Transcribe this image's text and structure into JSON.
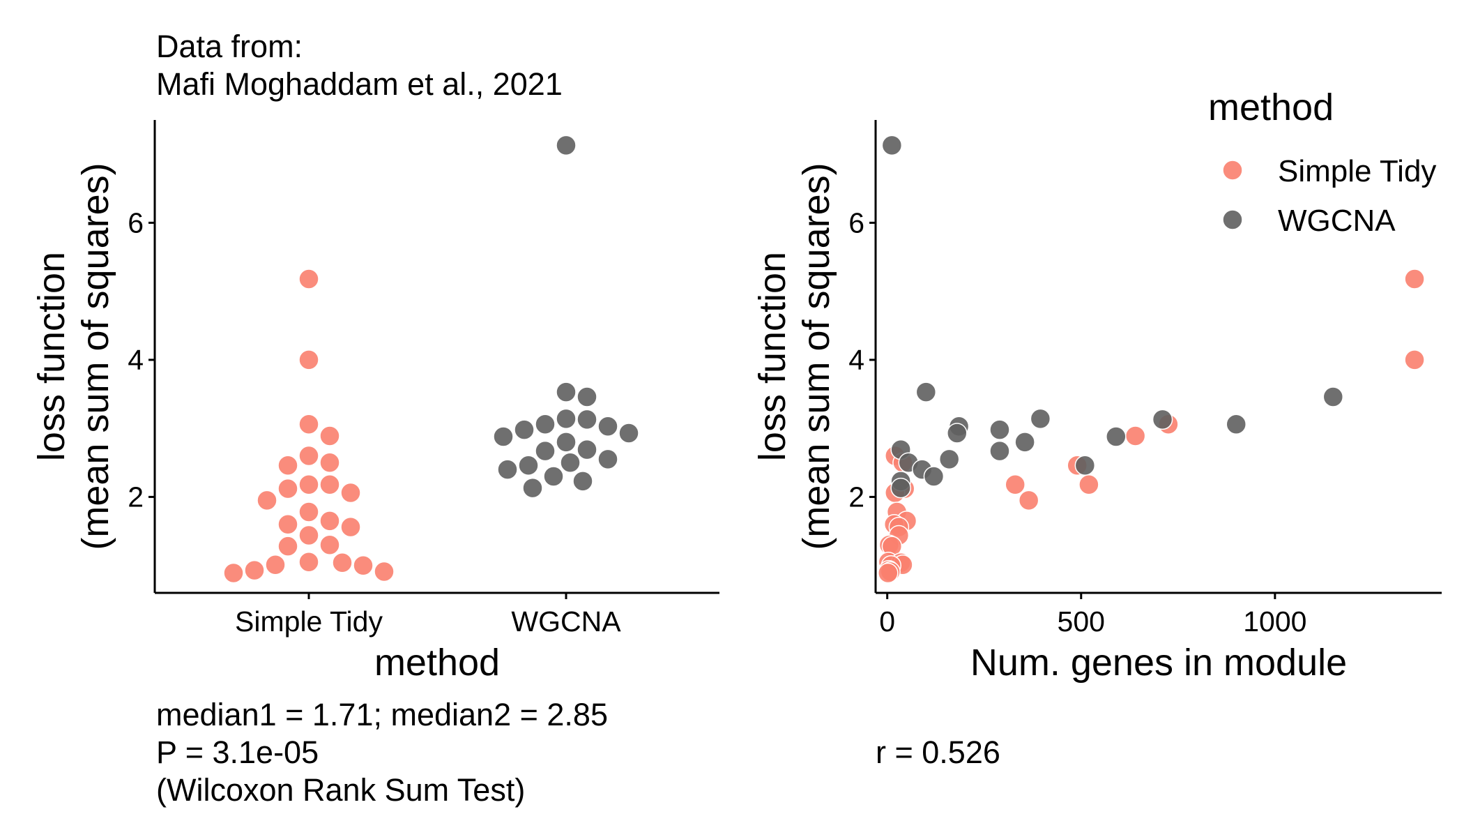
{
  "chart_data": [
    {
      "type": "scatter",
      "subtype": "beeswarm",
      "title_lines": [
        "Data from:",
        "Mafi Moghaddam et al., 2021"
      ],
      "xlabel": "method",
      "ylabel_lines": [
        "loss function",
        "(mean sum of squares)"
      ],
      "categories": [
        "Simple Tidy",
        "WGCNA"
      ],
      "ylim": [
        0.6,
        7.5
      ],
      "yticks": [
        2,
        4,
        6
      ],
      "grid": false,
      "series": [
        {
          "name": "Simple Tidy",
          "color": "#FA7F6E",
          "values": [
            5.18,
            4.0,
            3.06,
            2.89,
            2.6,
            2.5,
            2.46,
            2.18,
            2.18,
            2.12,
            2.06,
            1.95,
            1.78,
            1.65,
            1.6,
            1.56,
            1.44,
            1.3,
            1.28,
            1.05,
            1.04,
            1.01,
            1.0,
            0.93,
            0.91,
            0.89
          ]
        },
        {
          "name": "WGCNA",
          "color": "#5F5F5F",
          "values": [
            7.13,
            3.53,
            3.46,
            3.14,
            3.13,
            3.06,
            3.03,
            2.98,
            2.93,
            2.88,
            2.8,
            2.69,
            2.67,
            2.55,
            2.5,
            2.46,
            2.4,
            2.3,
            2.23,
            2.13
          ]
        }
      ],
      "annotation_lines": [
        "median1 = 1.71; median2 = 2.85",
        "P = 3.1e-05",
        "(Wilcoxon Rank Sum Test)"
      ]
    },
    {
      "type": "scatter",
      "xlabel": "Num. genes in module",
      "ylabel_lines": [
        "loss function",
        "(mean sum of squares)"
      ],
      "xlim": [
        -30,
        1430
      ],
      "ylim": [
        0.6,
        7.5
      ],
      "xticks": [
        0,
        500,
        1000
      ],
      "yticks": [
        2,
        4,
        6
      ],
      "grid": false,
      "legend": {
        "title": "method",
        "position": "top-right"
      },
      "series": [
        {
          "name": "Simple Tidy",
          "color": "#FA7F6E",
          "points": [
            [
              1360,
              5.18
            ],
            [
              1360,
              4.0
            ],
            [
              725,
              3.06
            ],
            [
              640,
              2.89
            ],
            [
              20,
              2.6
            ],
            [
              40,
              2.5
            ],
            [
              490,
              2.46
            ],
            [
              330,
              2.18
            ],
            [
              520,
              2.18
            ],
            [
              45,
              2.12
            ],
            [
              20,
              2.06
            ],
            [
              365,
              1.95
            ],
            [
              25,
              1.78
            ],
            [
              50,
              1.65
            ],
            [
              18,
              1.6
            ],
            [
              30,
              1.56
            ],
            [
              30,
              1.44
            ],
            [
              5,
              1.3
            ],
            [
              12,
              1.28
            ],
            [
              3,
              1.05
            ],
            [
              35,
              1.04
            ],
            [
              40,
              1.01
            ],
            [
              10,
              1.0
            ],
            [
              4,
              0.93
            ],
            [
              8,
              0.91
            ],
            [
              2,
              0.89
            ]
          ]
        },
        {
          "name": "WGCNA",
          "color": "#5F5F5F",
          "points": [
            [
              12,
              7.13
            ],
            [
              100,
              3.53
            ],
            [
              1150,
              3.46
            ],
            [
              395,
              3.14
            ],
            [
              710,
              3.13
            ],
            [
              900,
              3.06
            ],
            [
              185,
              3.03
            ],
            [
              290,
              2.98
            ],
            [
              180,
              2.93
            ],
            [
              590,
              2.88
            ],
            [
              355,
              2.8
            ],
            [
              35,
              2.69
            ],
            [
              290,
              2.67
            ],
            [
              160,
              2.55
            ],
            [
              55,
              2.5
            ],
            [
              510,
              2.46
            ],
            [
              90,
              2.4
            ],
            [
              120,
              2.3
            ],
            [
              35,
              2.23
            ],
            [
              35,
              2.13
            ]
          ]
        }
      ],
      "annotation_lines": [
        "r = 0.526"
      ]
    }
  ]
}
